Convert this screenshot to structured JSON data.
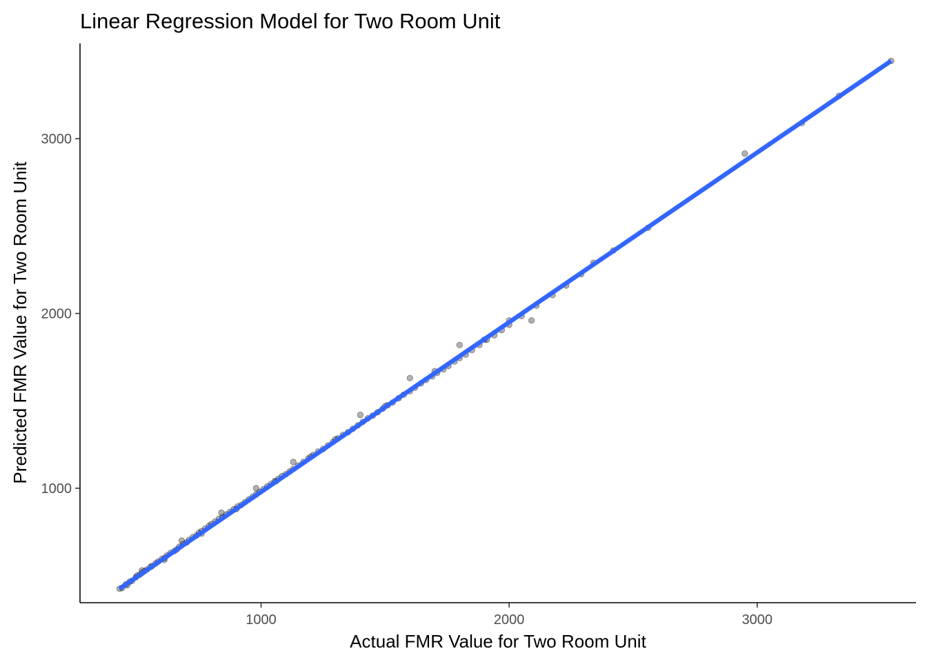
{
  "chart_data": {
    "type": "scatter",
    "title": "Linear Regression Model for Two Room Unit",
    "xlabel": "Actual FMR Value for Two Room Unit",
    "ylabel": "Predicted FMR Value for Two Room Unit",
    "xlim": [
      270,
      3640
    ],
    "ylim": [
      345,
      3545
    ],
    "xticks": [
      1000,
      2000,
      3000
    ],
    "yticks": [
      1000,
      2000,
      3000
    ],
    "grid": false,
    "legend": "none",
    "point_color": "#000000",
    "line_color": "#3366ff",
    "regression_line": {
      "x": [
        430,
        3540
      ],
      "y": [
        425,
        3445
      ]
    },
    "points": {
      "x": [
        430,
        440,
        455,
        460,
        470,
        480,
        495,
        500,
        510,
        520,
        530,
        540,
        555,
        560,
        575,
        585,
        600,
        610,
        620,
        635,
        650,
        660,
        670,
        685,
        700,
        710,
        725,
        740,
        750,
        760,
        775,
        790,
        800,
        815,
        830,
        845,
        860,
        875,
        890,
        905,
        920,
        935,
        950,
        965,
        980,
        995,
        1010,
        1025,
        1040,
        1055,
        1070,
        1085,
        1100,
        1115,
        1130,
        1150,
        1170,
        1190,
        1210,
        1230,
        1250,
        1270,
        1290,
        1310,
        1330,
        1350,
        1370,
        1390,
        1410,
        1430,
        1450,
        1470,
        1490,
        1510,
        1530,
        1555,
        1575,
        1600,
        1620,
        1645,
        1665,
        1690,
        1710,
        1735,
        1755,
        1780,
        1800,
        1825,
        1850,
        1880,
        1910,
        1940,
        1970,
        2000,
        2050,
        2110,
        2175,
        2230,
        2290,
        2340,
        2420,
        2560,
        2950,
        3180,
        3330,
        3540,
        520,
        610,
        680,
        760,
        840,
        900,
        980,
        1060,
        1130,
        1200,
        1300,
        1400,
        1500,
        1600,
        1700,
        1800,
        1900,
        2000,
        2090
      ],
      "y": [
        425,
        430,
        450,
        445,
        465,
        470,
        490,
        500,
        505,
        515,
        525,
        535,
        550,
        555,
        570,
        580,
        595,
        600,
        615,
        630,
        640,
        650,
        665,
        680,
        690,
        705,
        720,
        730,
        745,
        755,
        770,
        785,
        795,
        810,
        825,
        835,
        850,
        865,
        880,
        895,
        905,
        920,
        935,
        950,
        965,
        980,
        995,
        1010,
        1025,
        1040,
        1055,
        1070,
        1080,
        1095,
        1110,
        1130,
        1150,
        1170,
        1190,
        1210,
        1225,
        1245,
        1265,
        1285,
        1305,
        1320,
        1340,
        1360,
        1380,
        1400,
        1415,
        1435,
        1455,
        1475,
        1490,
        1515,
        1535,
        1555,
        1575,
        1600,
        1620,
        1640,
        1660,
        1680,
        1700,
        1725,
        1745,
        1765,
        1790,
        1820,
        1850,
        1875,
        1905,
        1935,
        1985,
        2045,
        2105,
        2160,
        2225,
        2290,
        2360,
        2490,
        2915,
        3090,
        3245,
        3445,
        530,
        590,
        700,
        740,
        860,
        880,
        1000,
        1040,
        1150,
        1180,
        1280,
        1420,
        1470,
        1630,
        1670,
        1820,
        1850,
        1960,
        1960
      ]
    }
  }
}
